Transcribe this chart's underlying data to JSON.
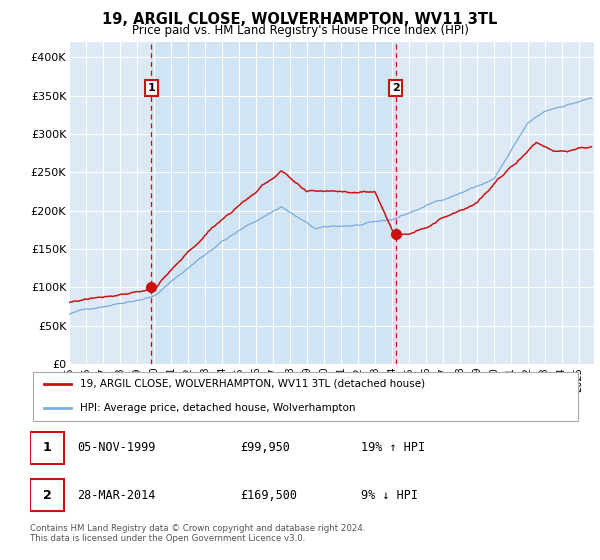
{
  "title": "19, ARGIL CLOSE, WOLVERHAMPTON, WV11 3TL",
  "subtitle": "Price paid vs. HM Land Registry's House Price Index (HPI)",
  "footnote": "Contains HM Land Registry data © Crown copyright and database right 2024.\nThis data is licensed under the Open Government Licence v3.0.",
  "legend_entries": [
    "19, ARGIL CLOSE, WOLVERHAMPTON, WV11 3TL (detached house)",
    "HPI: Average price, detached house, Wolverhampton"
  ],
  "sale1_date": "05-NOV-1999",
  "sale1_price": 99950,
  "sale1_hpi_diff": "19% ↑ HPI",
  "sale2_date": "28-MAR-2014",
  "sale2_price": 169500,
  "sale2_hpi_diff": "9% ↓ HPI",
  "xmin": 1995.0,
  "xmax": 2025.9,
  "ymin": 0,
  "ymax": 420000,
  "yticks": [
    0,
    50000,
    100000,
    150000,
    200000,
    250000,
    300000,
    350000,
    400000
  ],
  "ytick_labels": [
    "£0",
    "£50K",
    "£100K",
    "£150K",
    "£200K",
    "£250K",
    "£300K",
    "£350K",
    "£400K"
  ],
  "hpi_color": "#7aabdb",
  "price_color": "#cc1111",
  "bg_color": "#ddeaf6",
  "grid_color": "#ffffff",
  "shade_color": "#d0e4f4",
  "sale1_x": 1999.85,
  "sale1_y": 99950,
  "sale2_x": 2014.22,
  "sale2_y": 169500
}
